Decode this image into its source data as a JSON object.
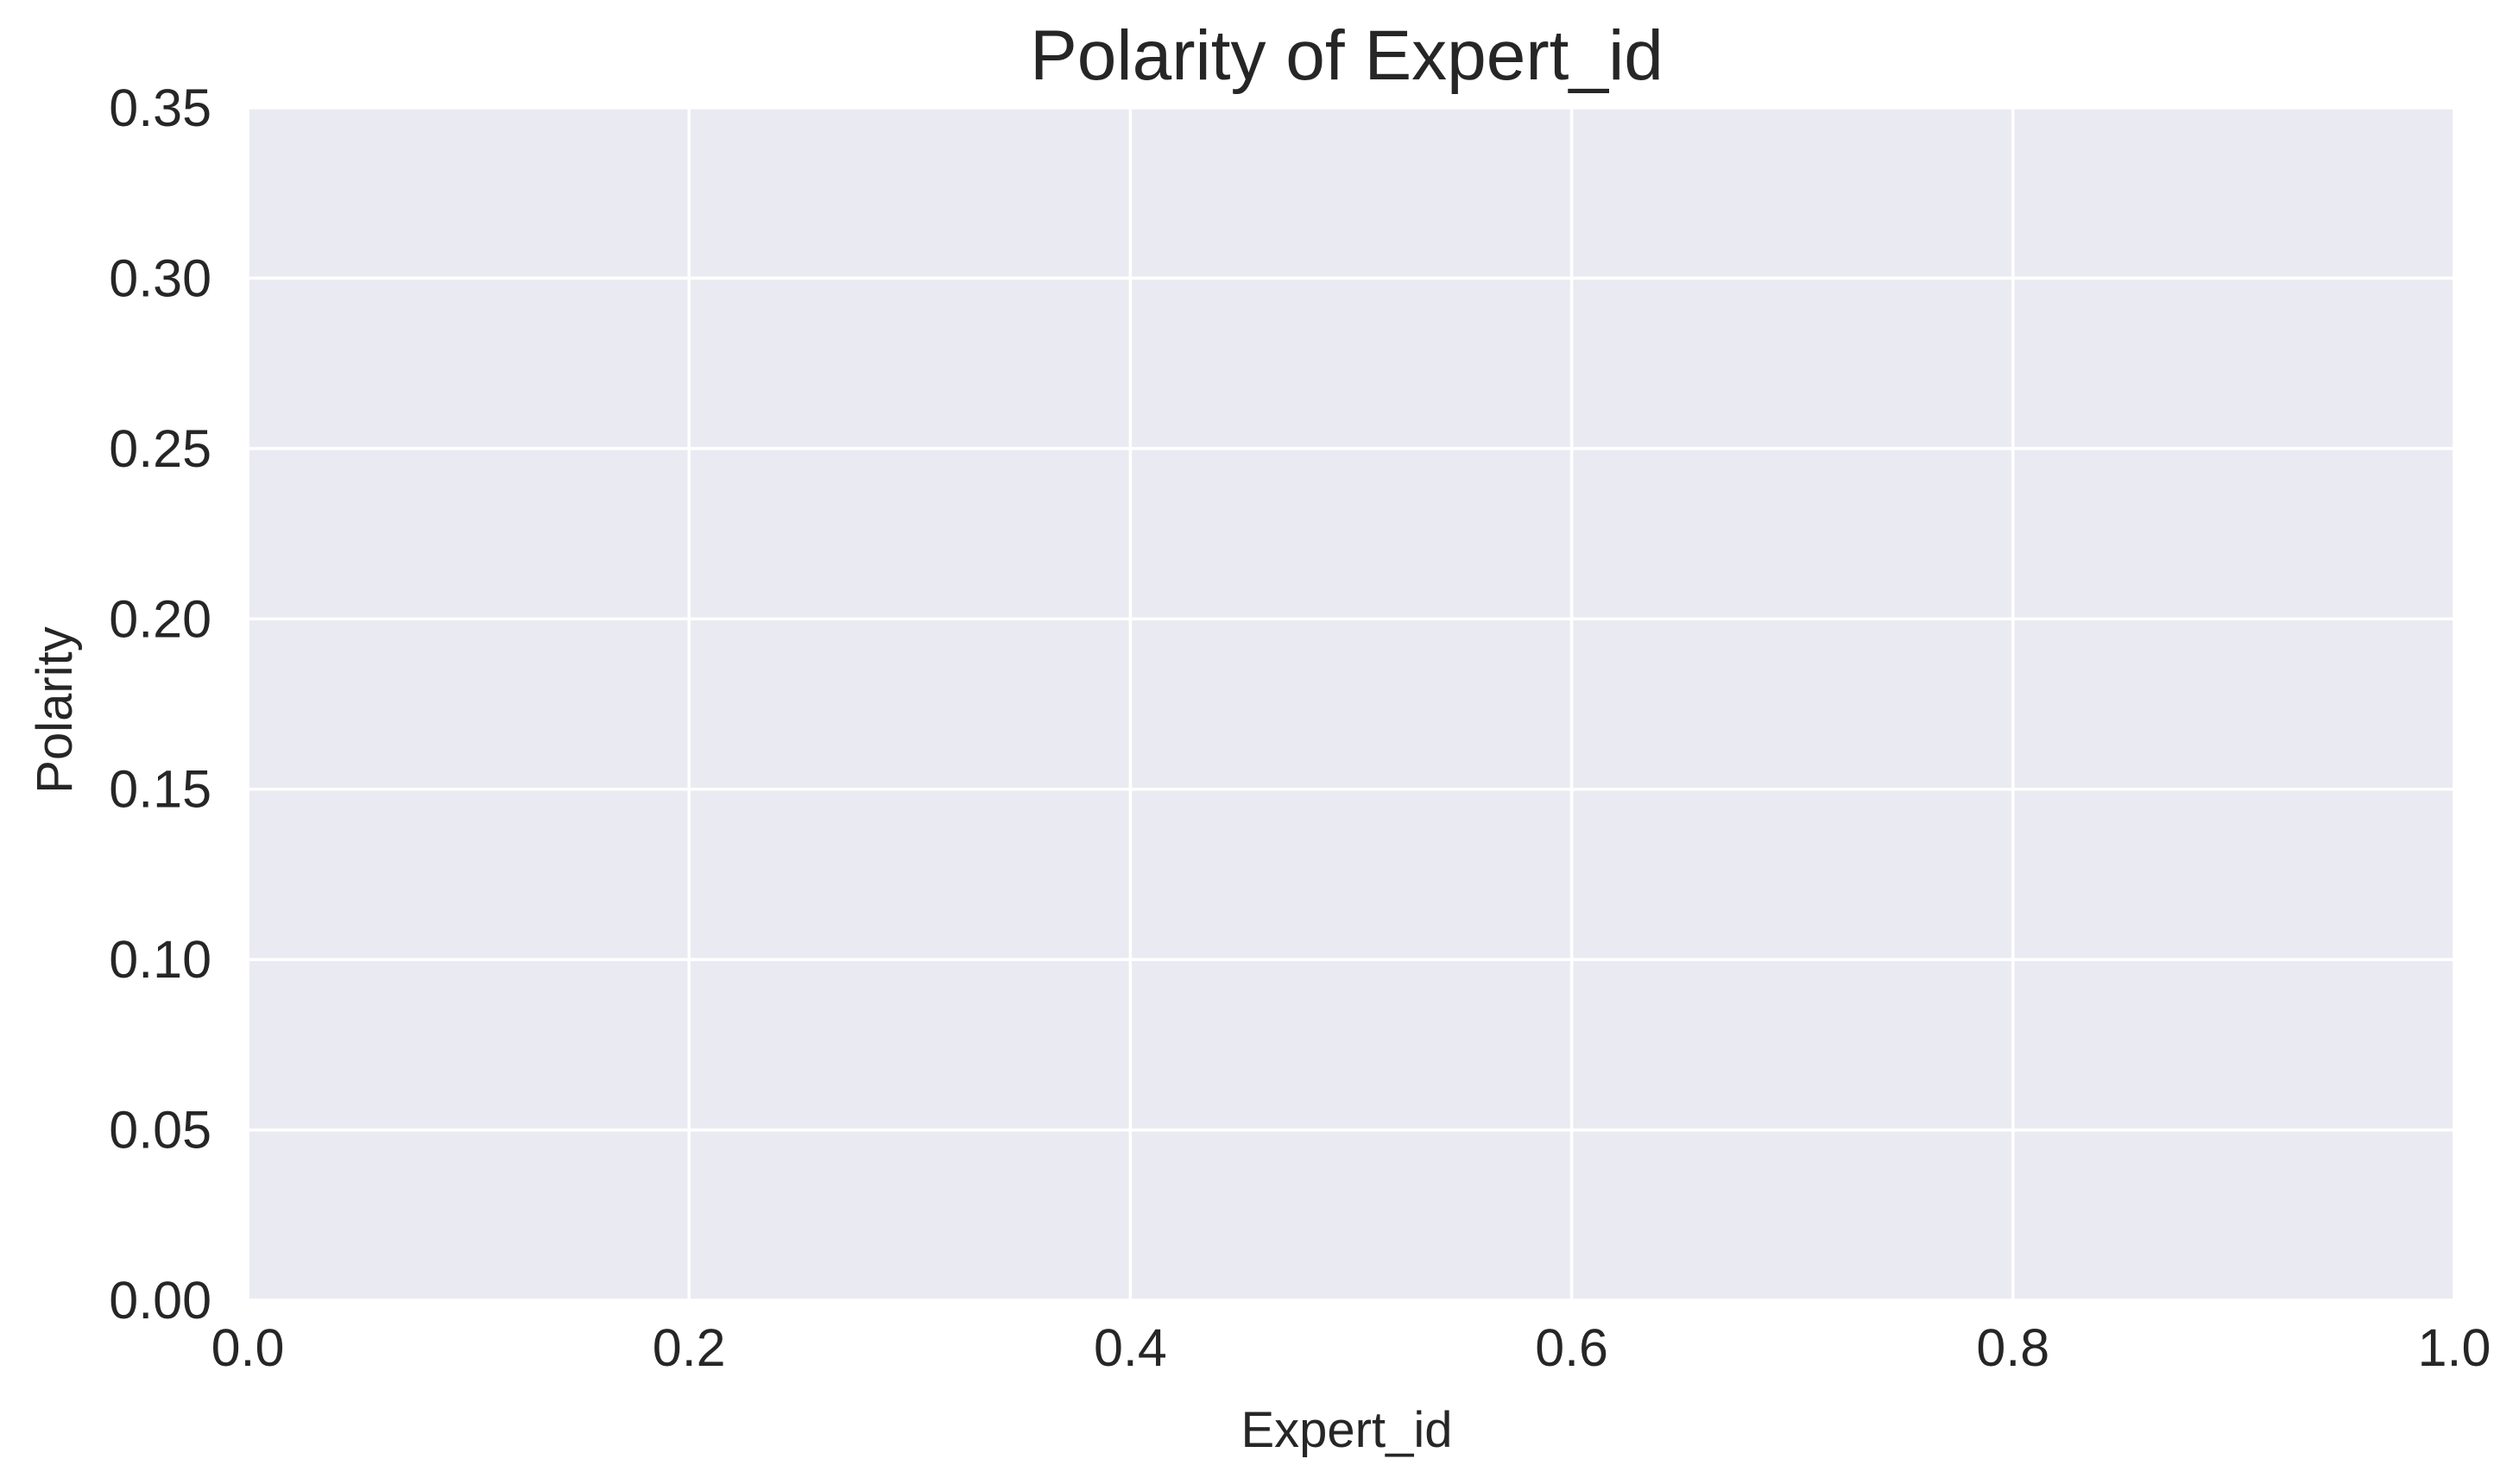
{
  "chart_data": {
    "type": "line",
    "title": "Polarity of Expert_id",
    "xlabel": "Expert_id",
    "ylabel": "Polarity",
    "xlim": [
      0.0,
      1.0
    ],
    "ylim": [
      0.0,
      0.35
    ],
    "x_ticks": [
      0.0,
      0.2,
      0.4,
      0.6,
      0.8,
      1.0
    ],
    "x_tick_labels": [
      "0.0",
      "0.2",
      "0.4",
      "0.6",
      "0.8",
      "1.0"
    ],
    "y_ticks": [
      0.0,
      0.05,
      0.1,
      0.15,
      0.2,
      0.25,
      0.3,
      0.35
    ],
    "y_tick_labels": [
      "0.00",
      "0.05",
      "0.10",
      "0.15",
      "0.20",
      "0.25",
      "0.30",
      "0.35"
    ],
    "grid": true,
    "series": [],
    "colors": {
      "plot_background": "#EAEAF2",
      "grid": "#FFFFFF",
      "text": "#262626"
    }
  }
}
